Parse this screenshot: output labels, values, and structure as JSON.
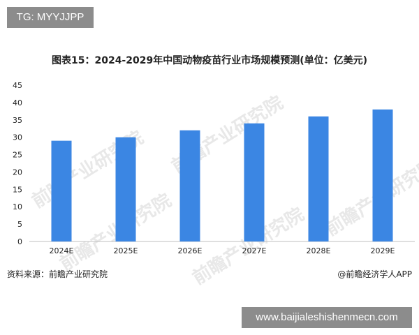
{
  "overlays": {
    "top_tag": "TG: MYYJJPP",
    "bottom_tag": "www.baijialeshishenmecn.com"
  },
  "footer": {
    "source": "资料来源：前瞻产业研究院",
    "credit": "@前瞻经济学人APP"
  },
  "watermark": {
    "text": "前瞻产业研究院"
  },
  "colors": {
    "bar": "#3b86e3",
    "axis": "#bfbfbf",
    "text": "#222222"
  },
  "chart_data": {
    "type": "bar",
    "title": "图表15：2024-2029年中国动物疫苗行业市场规模预测(单位：亿美元)",
    "categories": [
      "2024E",
      "2025E",
      "2026E",
      "2027E",
      "2028E",
      "2029E"
    ],
    "values": [
      29,
      30,
      32,
      34,
      36,
      38
    ],
    "ylim": [
      0,
      45
    ],
    "yticks": [
      0,
      5,
      10,
      15,
      20,
      25,
      30,
      35,
      40,
      45
    ],
    "grid": false,
    "legend": "none"
  }
}
